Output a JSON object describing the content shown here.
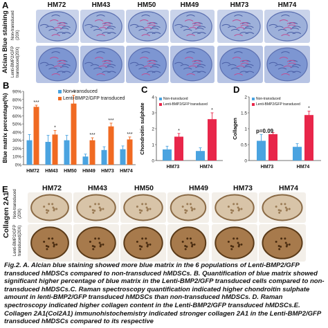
{
  "panel_a": {
    "label": "A",
    "headers": [
      "HM72",
      "HM43",
      "HM50",
      "HM49",
      "HM73",
      "HM74"
    ],
    "row_labels": [
      "Non-transduced (20X)",
      "Lenti-BMP2/GFP transduced(20X)"
    ],
    "side_title": "Alcian Blue staining"
  },
  "panel_b": {
    "label": "B"
  },
  "panel_c": {
    "label": "C"
  },
  "panel_d": {
    "label": "D",
    "annotation": "p=0.09"
  },
  "panel_e": {
    "label": "E",
    "headers": [
      "HM72",
      "HM43",
      "HM50",
      "HM49",
      "HM73",
      "HM74"
    ],
    "row_labels": [
      "Non-transduced (20X)",
      "Lenti-BMP2/GFP transduced(20X)"
    ],
    "side_title": "Collagen 2A1"
  },
  "colors": {
    "blue": "#4aa3e0",
    "orange": "#f06a22",
    "red": "#e8264a",
    "alcian_bg": "#b9c8e6",
    "collagen_bg": "#f1ebe4"
  },
  "caption": "Fig.2. A. Alcian blue staining showed more blue matrix in the 6 populations of Lenti-BMP2/GFP transduced hMDSCs compared to non-transduced hMDSCs. B. Quantification of blue matrix showed significant higher percentage of blue matrix in the Lenti-BMP2/GFP transduced cells compared to non-transduced hMDSCs.C. Raman spectroscopy quantification indicated higher chondroitin sulphate amount in lenti-BMP2/GFP transduced hMDSCs than non-transduced hMDSCs. D. Raman spectroscopy indicated higher collagen content in the Lenti-BMP2/GFP transduced hMDSCs.E. Collagen 2A1(Col2A1) immunohistochemistry indicated stronger collagen 2A1 in the Lenti-BMP2/GFP transduced hMDSCs compared to its respective",
  "chart_data": [
    {
      "type": "bar",
      "panel": "B",
      "categories": [
        "HM72",
        "HM43",
        "HM50",
        "HM49",
        "HM73",
        "HM74"
      ],
      "series": [
        {
          "name": "Non-transduced",
          "values": [
            30,
            28,
            30,
            10,
            18,
            19
          ],
          "errors": [
            7,
            8,
            6,
            3,
            4,
            4
          ]
        },
        {
          "name": "Lenti-BMP2/GFP transduced",
          "values": [
            71,
            37,
            75,
            30,
            47,
            31
          ],
          "errors": [
            2,
            5,
            10,
            3,
            4,
            3
          ]
        }
      ],
      "significance": [
        "***",
        "*",
        "**",
        "***",
        "***",
        "***"
      ],
      "ylabel": "Blue matrix percentage(%)",
      "yticks": [
        "0%",
        "10%",
        "20%",
        "30%",
        "40%",
        "50%",
        "60%",
        "70%",
        "80%",
        "90%"
      ],
      "ylim": [
        0,
        90
      ],
      "legend_position": "top-center"
    },
    {
      "type": "bar",
      "panel": "C",
      "categories": [
        "HM73",
        "HM74"
      ],
      "series": [
        {
          "name": "Non-transduced",
          "values": [
            0.7,
            0.6
          ],
          "errors": [
            0.2,
            0.2
          ]
        },
        {
          "name": "Lenti-BMP2/GFP transduced",
          "values": [
            1.5,
            2.6
          ],
          "errors": [
            0.2,
            0.4
          ]
        }
      ],
      "significance": [
        "*",
        "*"
      ],
      "ylabel": "Chondroitin sulphate",
      "yticks": [
        "0",
        "1",
        "2",
        "3",
        "4"
      ],
      "ylim": [
        0,
        4
      ],
      "legend_position": "top-left"
    },
    {
      "type": "bar",
      "panel": "D",
      "categories": [
        "HM73",
        "HM74"
      ],
      "series": [
        {
          "name": "Non-transduced",
          "values": [
            0.62,
            0.43
          ],
          "errors": [
            0.2,
            0.1
          ]
        },
        {
          "name": "Lenti-BMP2/GFP transduced",
          "values": [
            0.83,
            1.43
          ],
          "errors": [
            0.05,
            0.12
          ]
        }
      ],
      "significance": [
        "",
        "*"
      ],
      "ylabel": "Collagen",
      "yticks": [
        "0",
        "0.5",
        "1",
        "1.5",
        "2"
      ],
      "ylim": [
        0,
        2
      ],
      "legend_position": "top-left"
    }
  ]
}
